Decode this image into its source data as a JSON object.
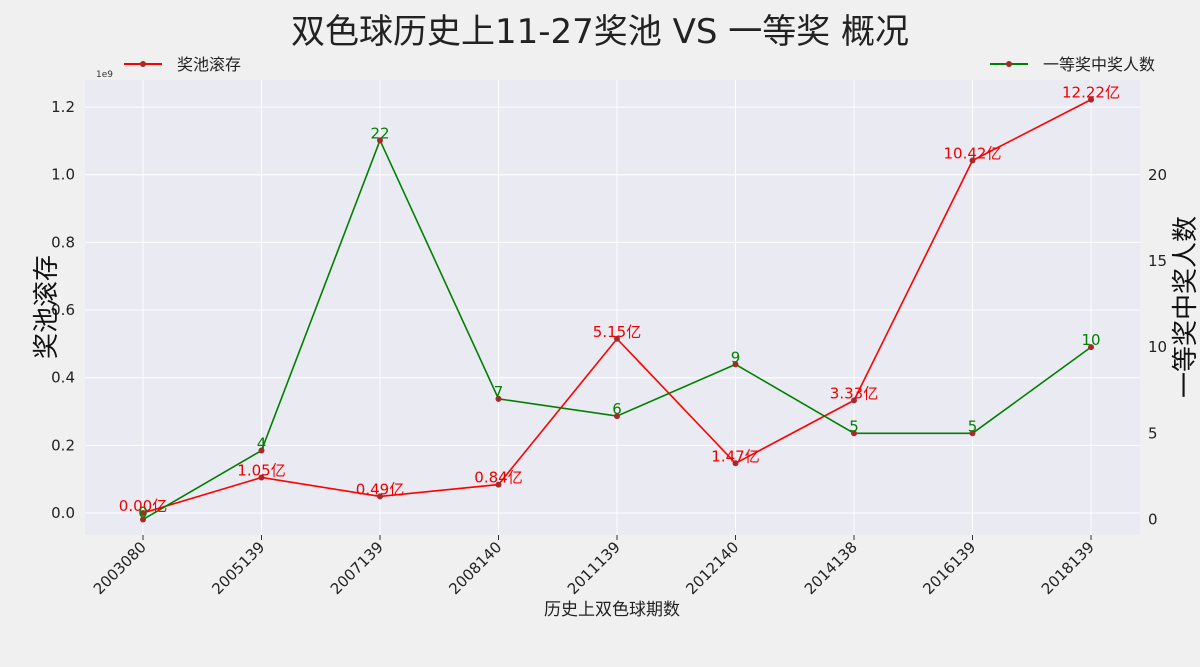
{
  "chart_data": {
    "type": "line",
    "title": "双色球历史上11-27奖池 VS 一等奖 概况",
    "xlabel": "历史上双色球期数",
    "ylabel_left": "奖池滚存",
    "ylabel_right": "一等奖中奖人数",
    "y_left_scale_label": "1e9",
    "categories": [
      "2003080",
      "2005139",
      "2007139",
      "2008140",
      "2011139",
      "2012140",
      "2014138",
      "2016139",
      "2018139"
    ],
    "ylim_left": [
      -0.065,
      1.28
    ],
    "yticks_left": [
      "0.0",
      "0.2",
      "0.4",
      "0.6",
      "0.8",
      "1.0",
      "1.2"
    ],
    "ylim_right": [
      -0.9,
      25.5
    ],
    "yticks_right": [
      "0",
      "5",
      "10",
      "15",
      "20"
    ],
    "grid": true,
    "series": [
      {
        "name": "奖池滚存",
        "axis": "left",
        "color": "#ff0000",
        "values": [
          0.0,
          0.105,
          0.049,
          0.084,
          0.515,
          0.147,
          0.333,
          1.042,
          1.222
        ],
        "labels": [
          "0.00亿",
          "1.05亿",
          "0.49亿",
          "0.84亿",
          "5.15亿",
          "1.47亿",
          "3.33亿",
          "10.42亿",
          "12.22亿"
        ],
        "legend_position": "top-left"
      },
      {
        "name": "一等奖中奖人数",
        "axis": "right",
        "color": "#008000",
        "values": [
          0,
          4,
          22,
          7,
          6,
          9,
          5,
          5,
          10
        ],
        "labels": [
          "0",
          "4",
          "22",
          "7",
          "6",
          "9",
          "5",
          "5",
          "10"
        ],
        "legend_position": "top-right"
      }
    ],
    "marker_color": "#a52a2a",
    "plot_background": "#eaeaf2"
  }
}
